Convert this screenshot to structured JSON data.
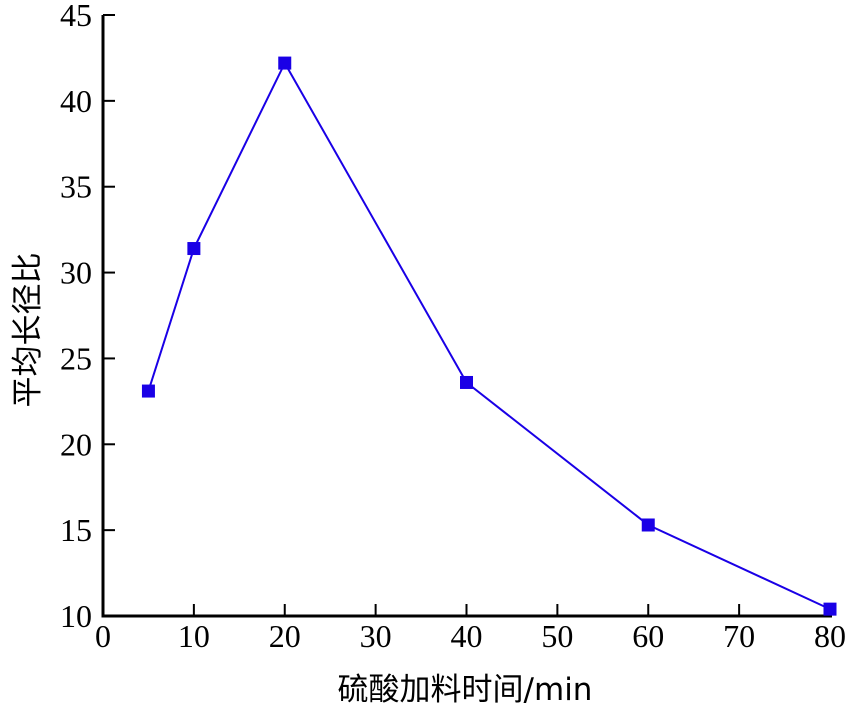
{
  "chart_data": {
    "type": "line",
    "title": "",
    "xlabel": "硫酸加料时间/min",
    "ylabel": "平均长径比",
    "xlim": [
      0,
      80
    ],
    "ylim": [
      10,
      45
    ],
    "xticks": [
      0,
      10,
      20,
      30,
      40,
      50,
      60,
      70,
      80
    ],
    "yticks": [
      10,
      15,
      20,
      25,
      30,
      35,
      40,
      45
    ],
    "grid": false,
    "legend": "none",
    "series": [
      {
        "x": [
          5,
          10,
          20,
          40,
          60,
          80
        ],
        "y": [
          23.1,
          31.4,
          42.2,
          23.6,
          15.3,
          10.4
        ],
        "color": "#1a00e6",
        "marker": "square"
      }
    ]
  }
}
